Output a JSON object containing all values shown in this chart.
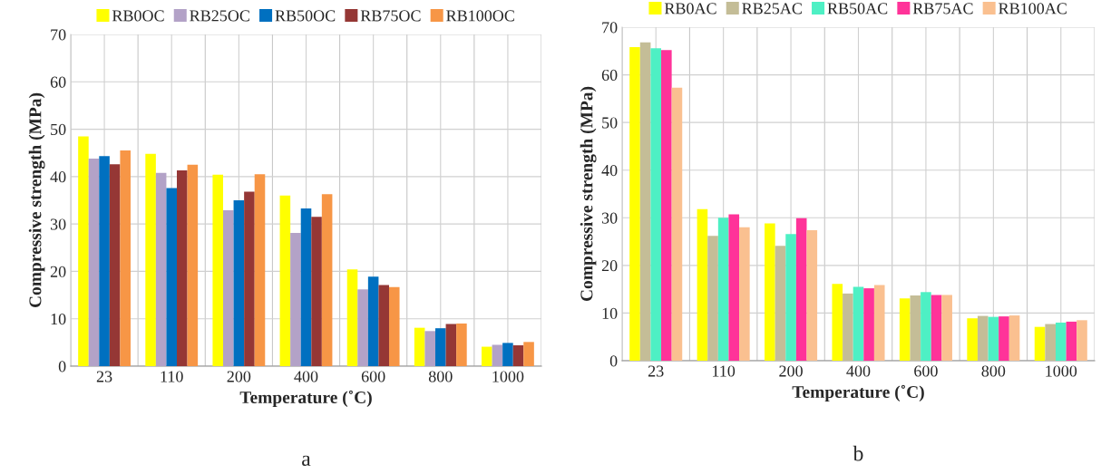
{
  "chart_data": [
    {
      "type": "bar",
      "xlabel": "Temperature (˚C)",
      "ylabel": "Compressive strength (MPa)",
      "categories": [
        "23",
        "110",
        "200",
        "400",
        "600",
        "800",
        "1000"
      ],
      "ylim": [
        0,
        70
      ],
      "yticks": [
        0,
        10,
        20,
        30,
        40,
        50,
        60,
        70
      ],
      "grid": true,
      "legend": "top",
      "annotations": [
        "a"
      ],
      "series": [
        {
          "name": "RB0OC",
          "color": "#ffff00",
          "values": [
            48.5,
            44.8,
            40.4,
            36.0,
            20.4,
            8.1,
            4.1
          ]
        },
        {
          "name": "RB25OC",
          "color": "#b3a2c7",
          "values": [
            43.8,
            40.8,
            32.9,
            28.1,
            16.2,
            7.4,
            4.5
          ]
        },
        {
          "name": "RB50OC",
          "color": "#0070c0",
          "values": [
            44.3,
            37.6,
            35.0,
            33.3,
            18.9,
            8.0,
            4.9
          ]
        },
        {
          "name": "RB75OC",
          "color": "#953735",
          "values": [
            42.6,
            41.3,
            36.8,
            31.5,
            17.1,
            8.9,
            4.4
          ]
        },
        {
          "name": "RB100OC",
          "color": "#f79646",
          "values": [
            45.5,
            42.5,
            40.5,
            36.3,
            16.7,
            9.0,
            5.1
          ]
        }
      ]
    },
    {
      "type": "bar",
      "xlabel": "Temperature (˚C)",
      "ylabel": "Compressive strength (MPa)",
      "categories": [
        "23",
        "110",
        "200",
        "400",
        "600",
        "800",
        "1000"
      ],
      "ylim": [
        0,
        70
      ],
      "yticks": [
        0,
        10,
        20,
        30,
        40,
        50,
        60,
        70
      ],
      "grid": true,
      "legend": "top",
      "annotations": [
        "b"
      ],
      "series": [
        {
          "name": "RB0AC",
          "color": "#ffff00",
          "values": [
            65.8,
            31.8,
            28.8,
            16.1,
            13.1,
            8.9,
            7.1
          ]
        },
        {
          "name": "RB25AC",
          "color": "#c4bd97",
          "values": [
            66.8,
            26.2,
            24.1,
            14.1,
            13.7,
            9.4,
            7.7
          ]
        },
        {
          "name": "RB50AC",
          "color": "#4ef0c4",
          "values": [
            65.6,
            30.0,
            26.6,
            15.5,
            14.4,
            9.2,
            8.0
          ]
        },
        {
          "name": "RB75AC",
          "color": "#ff3399",
          "values": [
            65.2,
            30.7,
            29.9,
            15.2,
            13.8,
            9.3,
            8.2
          ]
        },
        {
          "name": "RB100AC",
          "color": "#fac090",
          "values": [
            57.3,
            28.0,
            27.4,
            15.9,
            13.8,
            9.5,
            8.5
          ]
        }
      ]
    }
  ]
}
